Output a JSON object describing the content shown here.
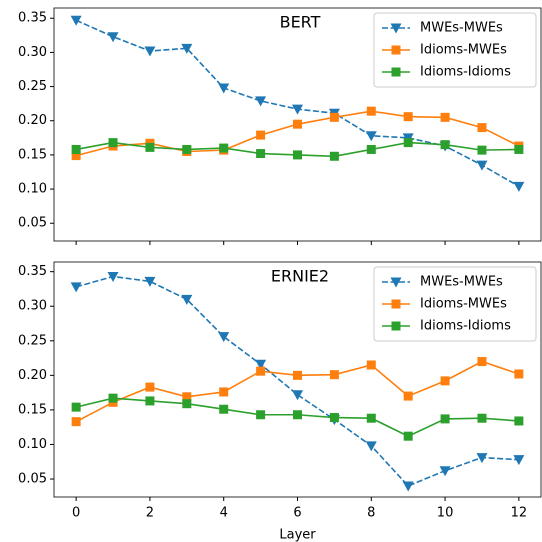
{
  "chart_data": [
    {
      "type": "line",
      "title": "BERT",
      "x": [
        0,
        1,
        2,
        3,
        4,
        5,
        6,
        7,
        8,
        9,
        10,
        11,
        12
      ],
      "xlim": [
        -0.6,
        12.6
      ],
      "xticks": [
        0,
        2,
        4,
        6,
        8,
        10,
        12
      ],
      "x_tick_labels": false,
      "ylim": [
        0.024,
        0.365
      ],
      "yticks": [
        {
          "value": 0.05,
          "label": "0.05"
        },
        {
          "value": 0.1,
          "label": "0.10"
        },
        {
          "value": 0.15,
          "label": "0.15"
        },
        {
          "value": 0.2,
          "label": "0.20"
        },
        {
          "value": 0.25,
          "label": "0.25"
        },
        {
          "value": 0.3,
          "label": "0.30"
        },
        {
          "value": 0.35,
          "label": "0.35"
        }
      ],
      "legend": "upper right",
      "series": [
        {
          "name": "MWEs-MWEs",
          "color": "#1f77b4",
          "linestyle": "dashed",
          "marker": "triangle-down",
          "values": [
            0.347,
            0.323,
            0.302,
            0.306,
            0.248,
            0.229,
            0.217,
            0.211,
            0.178,
            0.175,
            0.163,
            0.135,
            0.104
          ]
        },
        {
          "name": "Idioms-MWEs",
          "color": "#ff7f0e",
          "linestyle": "solid",
          "marker": "square",
          "values": [
            0.149,
            0.163,
            0.167,
            0.155,
            0.157,
            0.179,
            0.195,
            0.205,
            0.214,
            0.206,
            0.205,
            0.19,
            0.163
          ]
        },
        {
          "name": "Idioms-Idioms",
          "color": "#2ca02c",
          "linestyle": "solid",
          "marker": "square",
          "values": [
            0.158,
            0.168,
            0.161,
            0.158,
            0.16,
            0.152,
            0.15,
            0.148,
            0.158,
            0.168,
            0.165,
            0.157,
            0.158
          ]
        }
      ]
    },
    {
      "type": "line",
      "title": "ERNIE2",
      "xlabel": "Layer",
      "x": [
        0,
        1,
        2,
        3,
        4,
        5,
        6,
        7,
        8,
        9,
        10,
        11,
        12
      ],
      "xlim": [
        -0.6,
        12.6
      ],
      "xticks": [
        0,
        2,
        4,
        6,
        8,
        10,
        12
      ],
      "x_tick_labels": true,
      "ylim": [
        0.024,
        0.364
      ],
      "yticks": [
        {
          "value": 0.05,
          "label": "0.05"
        },
        {
          "value": 0.1,
          "label": "0.10"
        },
        {
          "value": 0.15,
          "label": "0.15"
        },
        {
          "value": 0.2,
          "label": "0.20"
        },
        {
          "value": 0.25,
          "label": "0.25"
        },
        {
          "value": 0.3,
          "label": "0.30"
        },
        {
          "value": 0.35,
          "label": "0.35"
        }
      ],
      "legend": "upper right",
      "series": [
        {
          "name": "MWEs-MWEs",
          "color": "#1f77b4",
          "linestyle": "dashed",
          "marker": "triangle-down",
          "values": [
            0.328,
            0.343,
            0.336,
            0.31,
            0.256,
            0.216,
            0.172,
            0.136,
            0.098,
            0.04,
            0.062,
            0.081,
            0.078
          ]
        },
        {
          "name": "Idioms-MWEs",
          "color": "#ff7f0e",
          "linestyle": "solid",
          "marker": "square",
          "values": [
            0.133,
            0.161,
            0.183,
            0.169,
            0.176,
            0.206,
            0.2,
            0.201,
            0.215,
            0.17,
            0.192,
            0.22,
            0.202
          ]
        },
        {
          "name": "Idioms-Idioms",
          "color": "#2ca02c",
          "linestyle": "solid",
          "marker": "square",
          "values": [
            0.154,
            0.167,
            0.163,
            0.159,
            0.151,
            0.143,
            0.143,
            0.139,
            0.138,
            0.112,
            0.137,
            0.138,
            0.134
          ]
        }
      ]
    }
  ]
}
